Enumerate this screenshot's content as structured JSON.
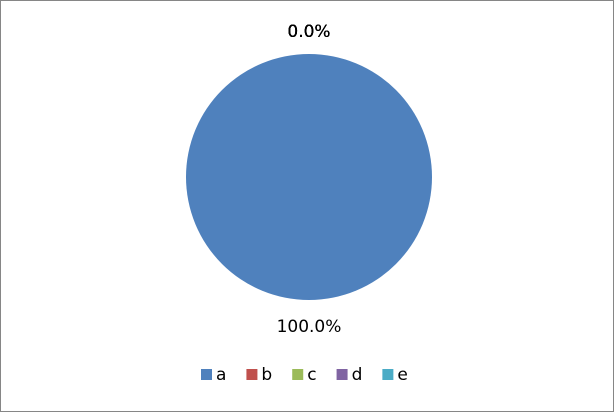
{
  "chart_data": {
    "type": "pie",
    "categories": [
      "a",
      "b",
      "c",
      "d",
      "e"
    ],
    "values": [
      100,
      0,
      0,
      0,
      0
    ],
    "value_labels": [
      "100.0%",
      "0.0%",
      "0.0%",
      "0.0%",
      "0.0%"
    ],
    "colors": [
      "#4f81bd",
      "#c0504d",
      "#9bbb59",
      "#8064a2",
      "#4bacc6"
    ],
    "legend": "bottom"
  }
}
